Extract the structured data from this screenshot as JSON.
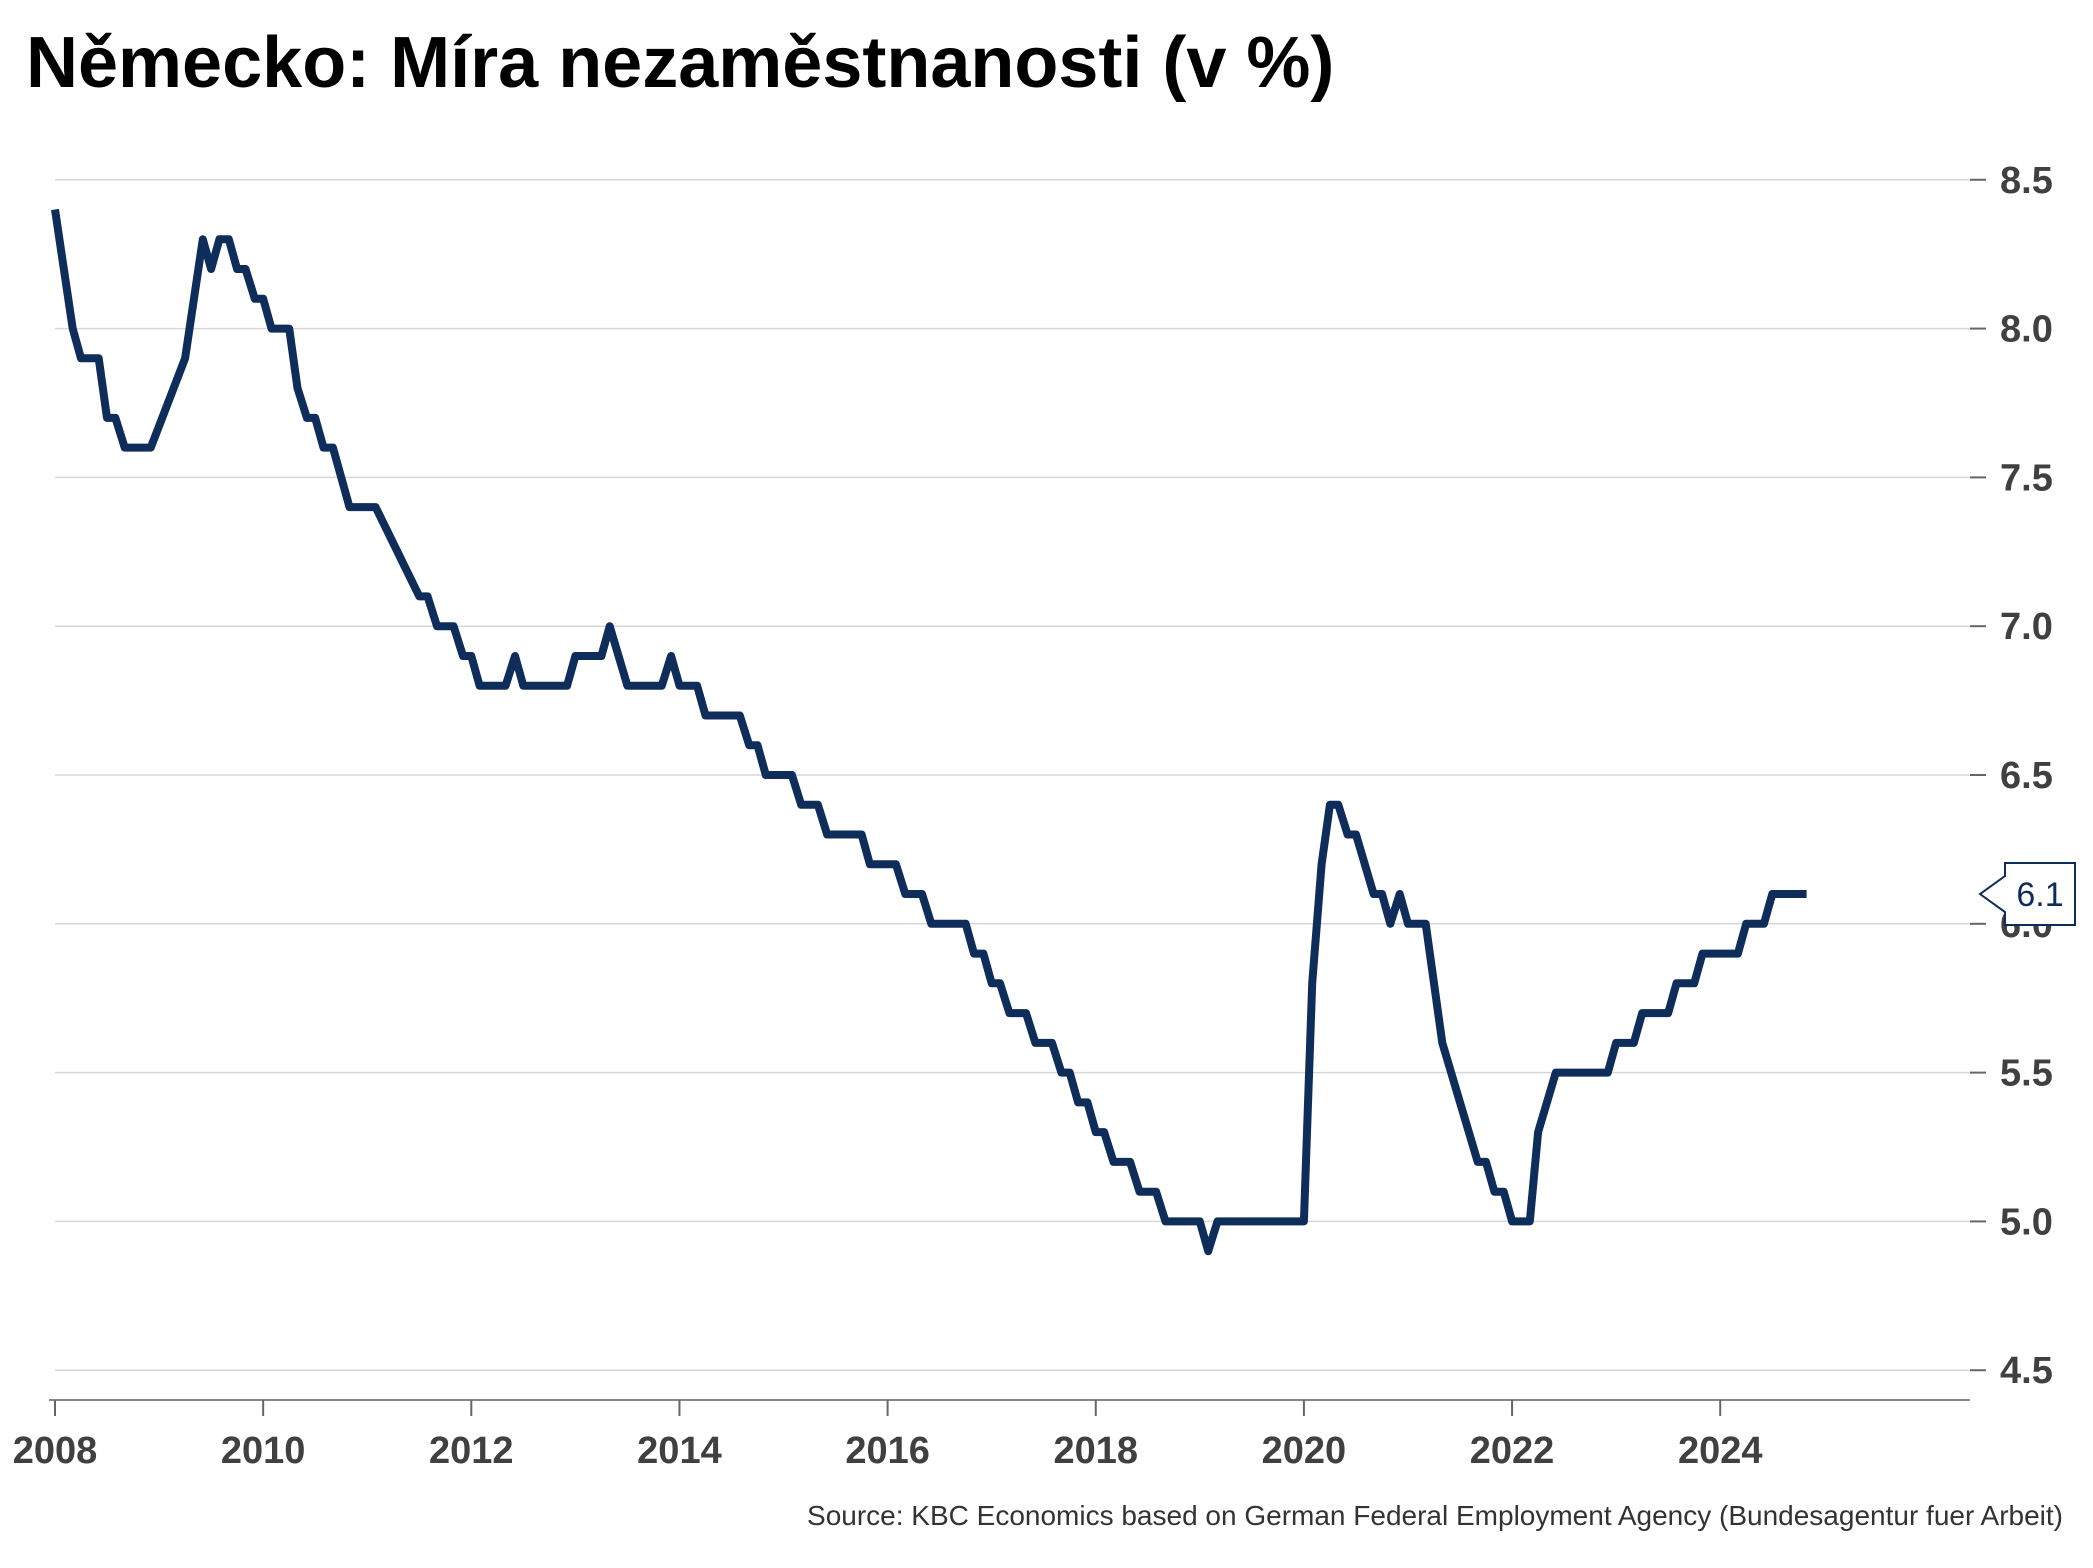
{
  "title": "Německo: Míra nezaměstnanosti (v %)",
  "source": "Source: KBC Economics based on German Federal Employment Agency (Bundesagentur fuer Arbeit)",
  "colors": {
    "line": "#0f2d5a",
    "grid": "#d7d7d7",
    "tick_label": "#404040"
  },
  "chart_data": {
    "type": "line",
    "title": "Německo: Míra nezaměstnanosti (v %)",
    "xlabel": "",
    "ylabel": "",
    "y_axis_position": "right",
    "xlim": [
      2008,
      2026.4
    ],
    "ylim": [
      4.4,
      8.6
    ],
    "x_ticks": [
      2008,
      2010,
      2012,
      2014,
      2016,
      2018,
      2020,
      2022,
      2024
    ],
    "y_ticks": [
      4.5,
      5.0,
      5.5,
      6.0,
      6.5,
      7.0,
      7.5,
      8.0,
      8.5
    ],
    "grid": "horizontal",
    "last_value_label": "6.1",
    "series": [
      {
        "name": "",
        "points": [
          [
            2008.0,
            8.4
          ],
          [
            2008.17,
            8.0
          ],
          [
            2008.25,
            7.9
          ],
          [
            2008.42,
            7.9
          ],
          [
            2008.5,
            7.7
          ],
          [
            2008.58,
            7.7
          ],
          [
            2008.67,
            7.6
          ],
          [
            2008.92,
            7.6
          ],
          [
            2009.25,
            7.9
          ],
          [
            2009.42,
            8.3
          ],
          [
            2009.5,
            8.2
          ],
          [
            2009.58,
            8.3
          ],
          [
            2009.67,
            8.3
          ],
          [
            2009.75,
            8.2
          ],
          [
            2009.83,
            8.2
          ],
          [
            2009.92,
            8.1
          ],
          [
            2010.0,
            8.1
          ],
          [
            2010.08,
            8.0
          ],
          [
            2010.25,
            8.0
          ],
          [
            2010.33,
            7.8
          ],
          [
            2010.42,
            7.7
          ],
          [
            2010.5,
            7.7
          ],
          [
            2010.58,
            7.6
          ],
          [
            2010.67,
            7.6
          ],
          [
            2010.83,
            7.4
          ],
          [
            2011.0,
            7.4
          ],
          [
            2011.08,
            7.4
          ],
          [
            2011.5,
            7.1
          ],
          [
            2011.58,
            7.1
          ],
          [
            2011.67,
            7.0
          ],
          [
            2011.83,
            7.0
          ],
          [
            2011.92,
            6.9
          ],
          [
            2012.0,
            6.9
          ],
          [
            2012.08,
            6.8
          ],
          [
            2012.33,
            6.8
          ],
          [
            2012.42,
            6.9
          ],
          [
            2012.5,
            6.8
          ],
          [
            2012.75,
            6.8
          ],
          [
            2012.92,
            6.8
          ],
          [
            2013.0,
            6.9
          ],
          [
            2013.25,
            6.9
          ],
          [
            2013.33,
            7.0
          ],
          [
            2013.5,
            6.8
          ],
          [
            2013.83,
            6.8
          ],
          [
            2013.92,
            6.9
          ],
          [
            2014.0,
            6.8
          ],
          [
            2014.17,
            6.8
          ],
          [
            2014.25,
            6.7
          ],
          [
            2014.58,
            6.7
          ],
          [
            2014.67,
            6.6
          ],
          [
            2014.75,
            6.6
          ],
          [
            2014.83,
            6.5
          ],
          [
            2015.08,
            6.5
          ],
          [
            2015.17,
            6.4
          ],
          [
            2015.33,
            6.4
          ],
          [
            2015.42,
            6.3
          ],
          [
            2015.75,
            6.3
          ],
          [
            2015.83,
            6.2
          ],
          [
            2016.08,
            6.2
          ],
          [
            2016.17,
            6.1
          ],
          [
            2016.33,
            6.1
          ],
          [
            2016.42,
            6.0
          ],
          [
            2016.75,
            6.0
          ],
          [
            2016.83,
            5.9
          ],
          [
            2016.92,
            5.9
          ],
          [
            2017.0,
            5.8
          ],
          [
            2017.08,
            5.8
          ],
          [
            2017.17,
            5.7
          ],
          [
            2017.33,
            5.7
          ],
          [
            2017.42,
            5.6
          ],
          [
            2017.58,
            5.6
          ],
          [
            2017.67,
            5.5
          ],
          [
            2017.75,
            5.5
          ],
          [
            2017.83,
            5.4
          ],
          [
            2017.92,
            5.4
          ],
          [
            2018.0,
            5.3
          ],
          [
            2018.08,
            5.3
          ],
          [
            2018.17,
            5.2
          ],
          [
            2018.33,
            5.2
          ],
          [
            2018.42,
            5.1
          ],
          [
            2018.58,
            5.1
          ],
          [
            2018.67,
            5.0
          ],
          [
            2019.0,
            5.0
          ],
          [
            2019.08,
            4.9
          ],
          [
            2019.17,
            5.0
          ],
          [
            2020.0,
            5.0
          ],
          [
            2020.08,
            5.8
          ],
          [
            2020.17,
            6.2
          ],
          [
            2020.25,
            6.4
          ],
          [
            2020.33,
            6.4
          ],
          [
            2020.42,
            6.3
          ],
          [
            2020.5,
            6.3
          ],
          [
            2020.67,
            6.1
          ],
          [
            2020.75,
            6.1
          ],
          [
            2020.83,
            6.0
          ],
          [
            2020.92,
            6.1
          ],
          [
            2021.0,
            6.0
          ],
          [
            2021.17,
            6.0
          ],
          [
            2021.33,
            5.6
          ],
          [
            2021.67,
            5.2
          ],
          [
            2021.75,
            5.2
          ],
          [
            2021.83,
            5.1
          ],
          [
            2021.92,
            5.1
          ],
          [
            2022.0,
            5.0
          ],
          [
            2022.17,
            5.0
          ],
          [
            2022.25,
            5.3
          ],
          [
            2022.42,
            5.5
          ],
          [
            2022.92,
            5.5
          ],
          [
            2023.0,
            5.6
          ],
          [
            2023.17,
            5.6
          ],
          [
            2023.25,
            5.7
          ],
          [
            2023.5,
            5.7
          ],
          [
            2023.58,
            5.8
          ],
          [
            2023.75,
            5.8
          ],
          [
            2023.83,
            5.9
          ],
          [
            2024.17,
            5.9
          ],
          [
            2024.25,
            6.0
          ],
          [
            2024.42,
            6.0
          ],
          [
            2024.5,
            6.1
          ],
          [
            2024.83,
            6.1
          ]
        ]
      }
    ]
  }
}
